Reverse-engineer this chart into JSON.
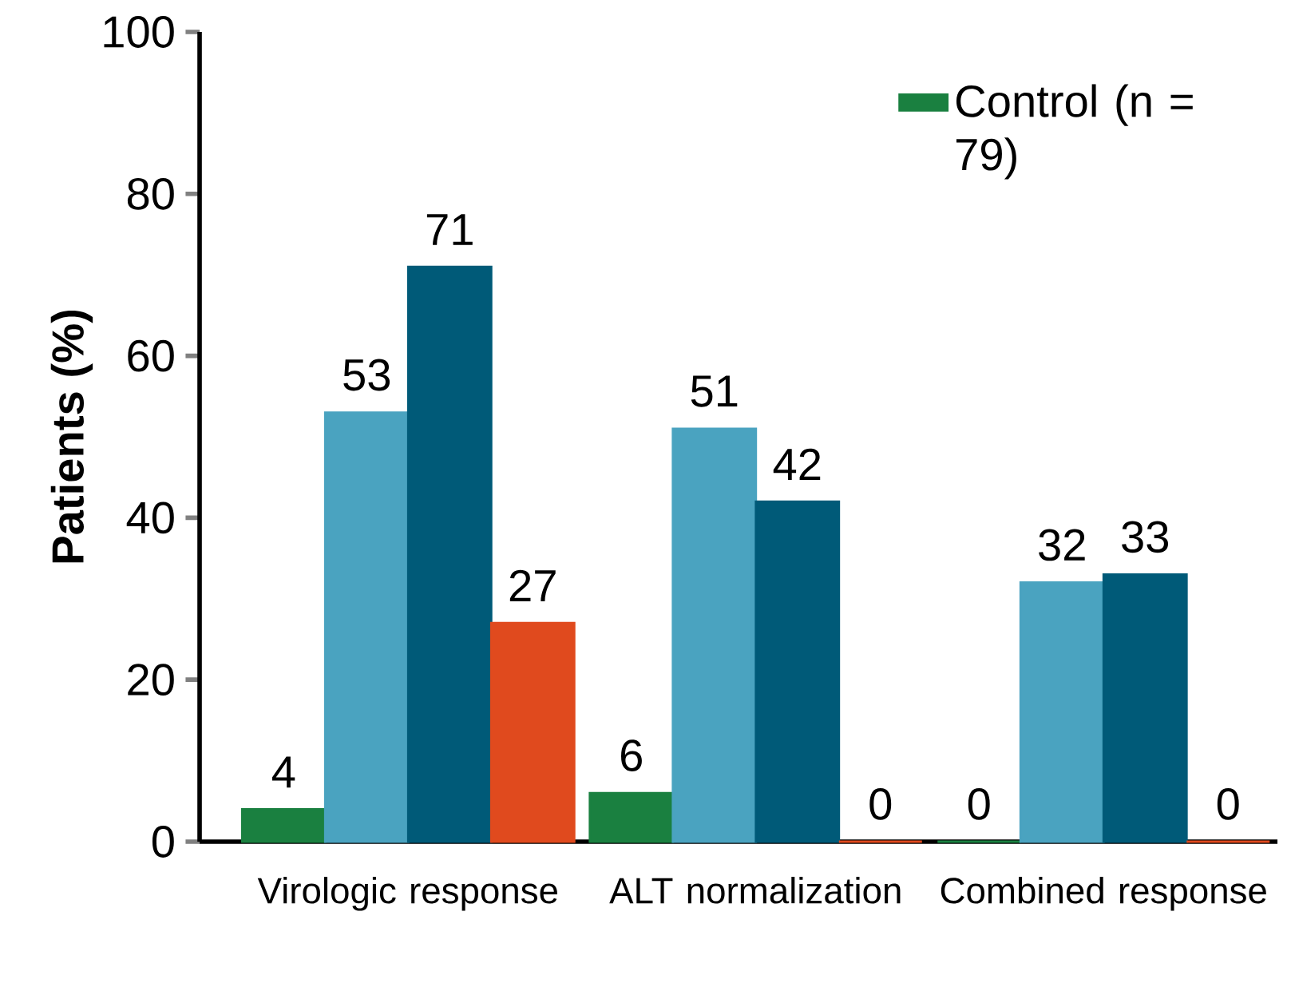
{
  "chart_data": {
    "type": "bar",
    "ylabel": "Patients (%)",
    "categories": [
      "Virologic response",
      "ALT normalization",
      "Combined response"
    ],
    "series": [
      {
        "name": "Control (n = 79)",
        "color": "#1a8040",
        "values": [
          4,
          6,
          0
        ]
      },
      {
        "color": "#4aa3c0",
        "values": [
          53,
          51,
          32
        ]
      },
      {
        "color": "#005a78",
        "values": [
          71,
          42,
          33
        ]
      },
      {
        "color": "#e04a1e",
        "values": [
          27,
          0,
          0
        ]
      }
    ],
    "ylim": [
      0,
      100
    ],
    "yticks": [
      0,
      20,
      40,
      60,
      80,
      100
    ],
    "data_labels": true,
    "legend": "top right",
    "grid": false
  }
}
